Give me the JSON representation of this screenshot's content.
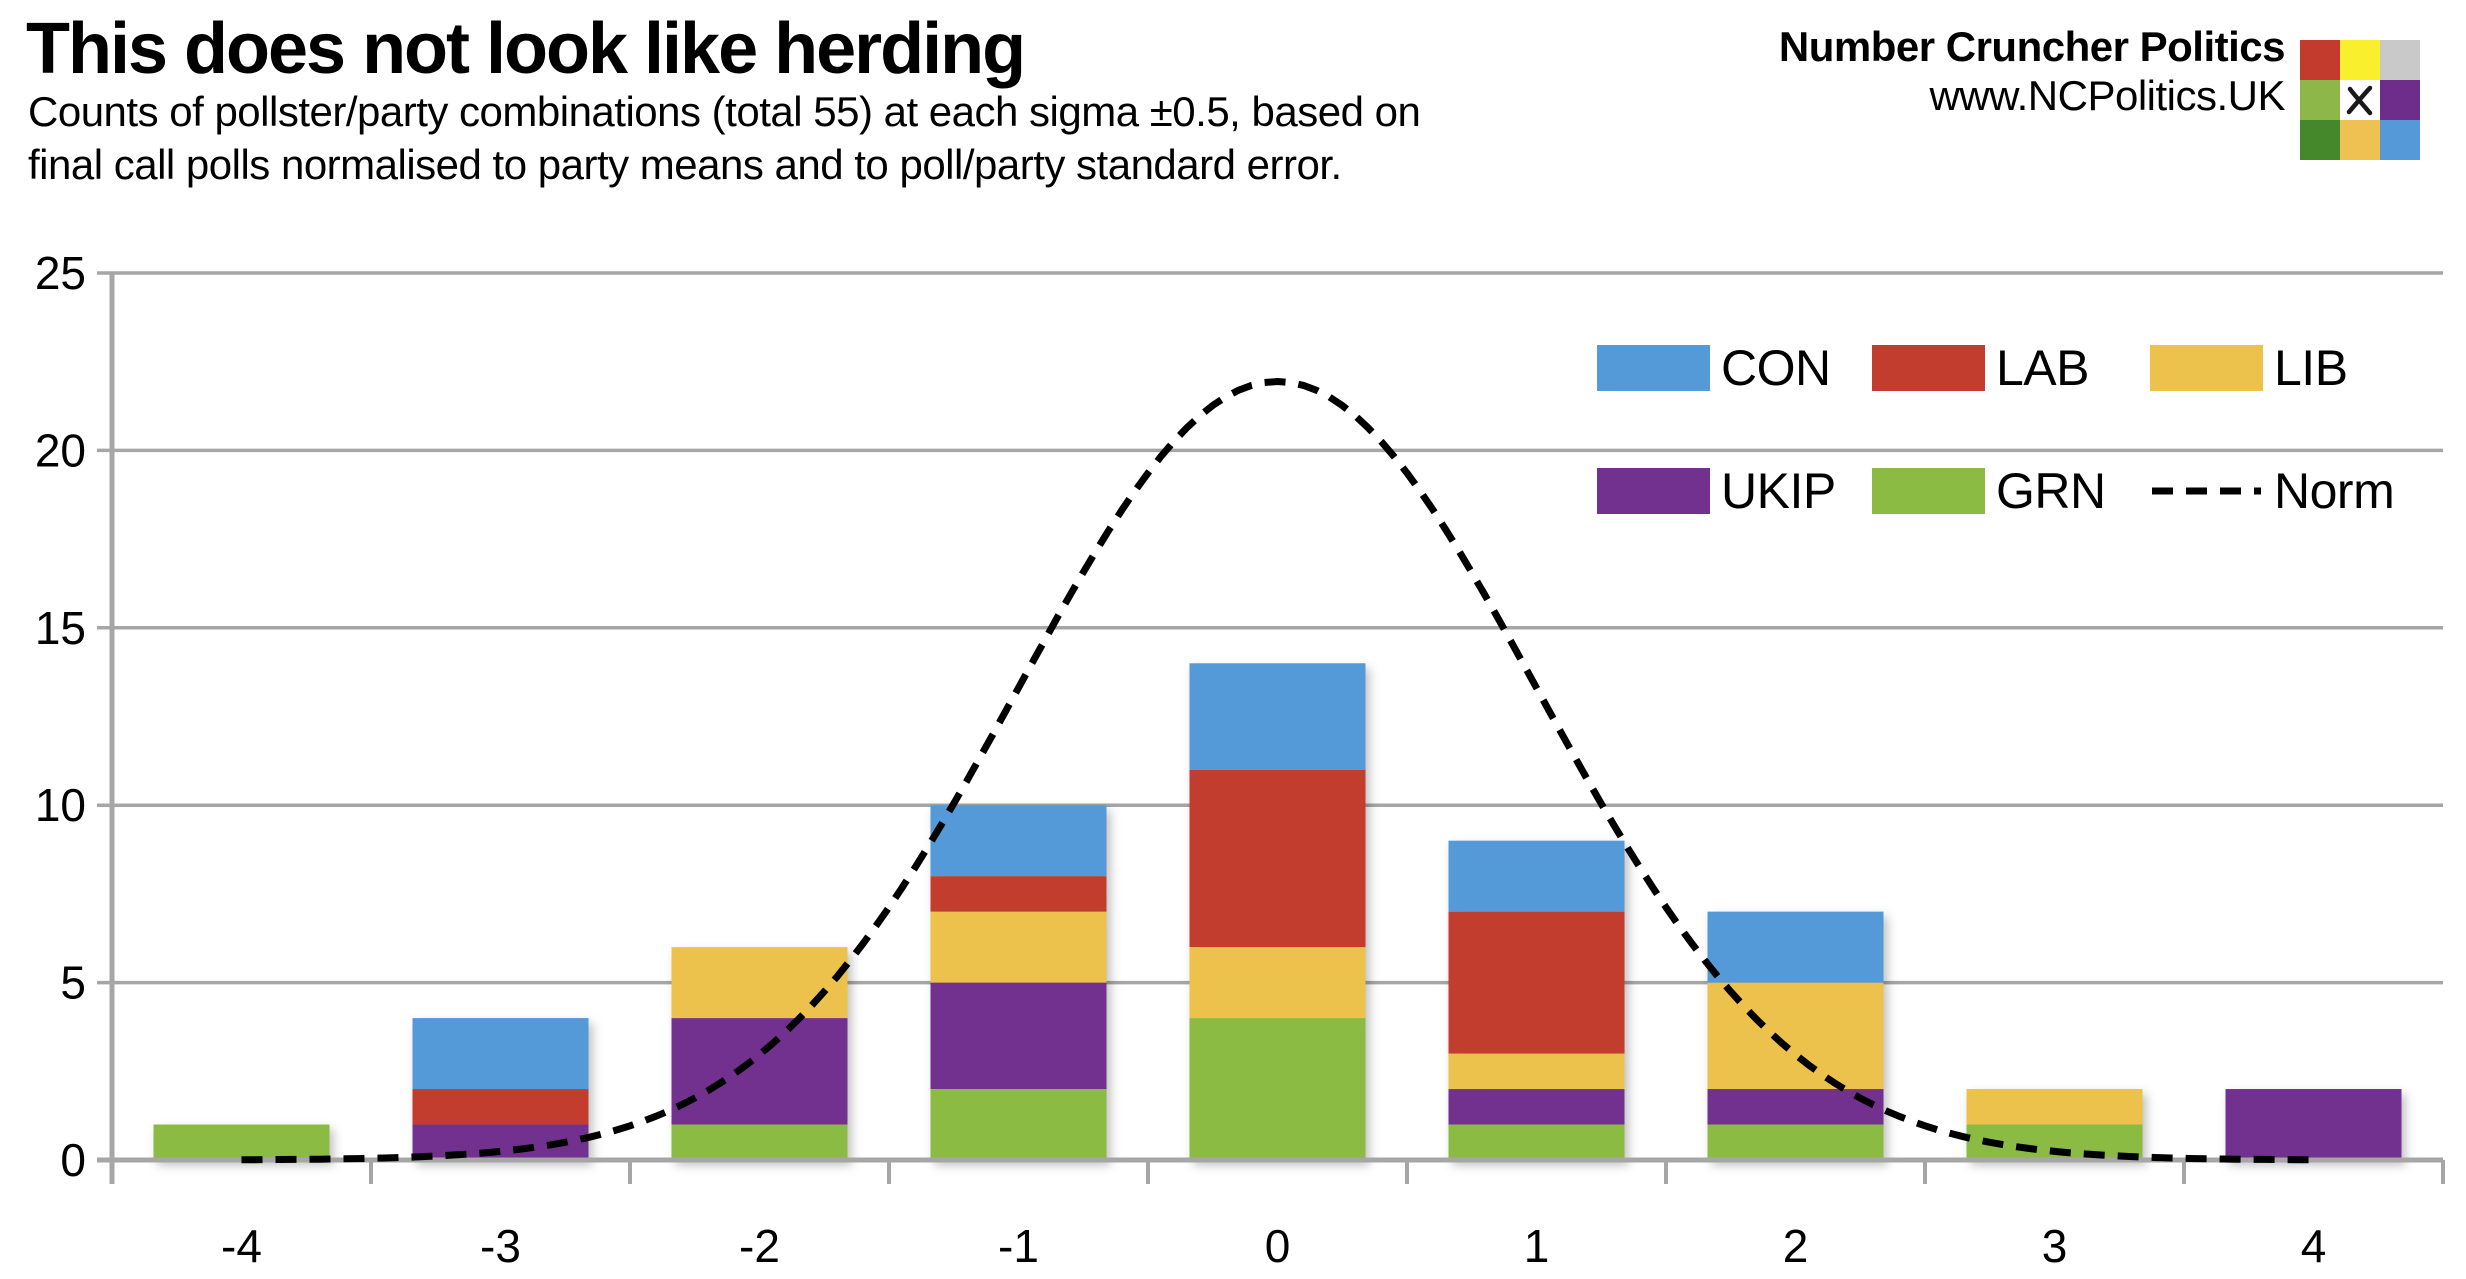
{
  "header": {
    "title": "This does not look like herding",
    "subtitle_line1": "Counts of pollster/party combinations (total 55) at each sigma ±0.5, based on",
    "subtitle_line2": "final call polls normalised to party means and to poll/party standard error.",
    "brand_name": "Number Cruncher Politics",
    "brand_url": "www.NCPolitics.UK"
  },
  "logo": {
    "description": "3x3 colour grid with ballot X in centre",
    "grid_colors": [
      [
        "#c23b2c",
        "#f9ef2d",
        "#c9c9c9"
      ],
      [
        "#8eb74a",
        "#ffffff",
        "#6e2c8b"
      ],
      [
        "#45882b",
        "#eec152",
        "#5599d8"
      ]
    ],
    "x_mark_color": "#1a1a1a"
  },
  "chart_data": {
    "type": "bar",
    "subtype": "stacked-columns-with-normal-curve-overlay",
    "title": "This does not look like herding",
    "categories": [
      -4,
      -3,
      -2,
      -1,
      0,
      1,
      2,
      3,
      4
    ],
    "series": [
      {
        "name": "CON",
        "color": "#5499d8",
        "values": [
          0,
          2,
          0,
          2,
          3,
          2,
          2,
          0,
          0
        ]
      },
      {
        "name": "LAB",
        "color": "#c33d2e",
        "values": [
          0,
          1,
          0,
          1,
          5,
          4,
          0,
          0,
          0
        ]
      },
      {
        "name": "LIB",
        "color": "#edc24c",
        "values": [
          0,
          0,
          2,
          2,
          2,
          1,
          3,
          1,
          0
        ]
      },
      {
        "name": "UKIP",
        "color": "#72308f",
        "values": [
          0,
          1,
          3,
          3,
          0,
          1,
          1,
          0,
          2
        ]
      },
      {
        "name": "GRN",
        "color": "#8cbb43",
        "values": [
          1,
          0,
          1,
          2,
          4,
          1,
          1,
          1,
          0
        ]
      }
    ],
    "stack_order_bottom_to_top": [
      "GRN",
      "UKIP",
      "LIB",
      "LAB",
      "CON"
    ],
    "totals_by_category": [
      1,
      4,
      6,
      10,
      14,
      9,
      7,
      2,
      2
    ],
    "total": 55,
    "norm_curve": {
      "label": "Norm",
      "distribution": "normal",
      "mean": 0,
      "sd": 1,
      "scale": 55,
      "peak_value": 22,
      "color": "#000000",
      "style": "dashed"
    },
    "legend": [
      {
        "label": "CON",
        "color": "#5499d8",
        "type": "swatch"
      },
      {
        "label": "LAB",
        "color": "#c33d2e",
        "type": "swatch"
      },
      {
        "label": "LIB",
        "color": "#edc24c",
        "type": "swatch"
      },
      {
        "label": "UKIP",
        "color": "#72308f",
        "type": "swatch"
      },
      {
        "label": "GRN",
        "color": "#8cbb43",
        "type": "swatch"
      },
      {
        "label": "Norm",
        "color": "#000000",
        "type": "dashed-line"
      }
    ],
    "yaxis": {
      "min": 0,
      "max": 25,
      "tick_step": 5,
      "tick_labels": [
        "0",
        "5",
        "10",
        "15",
        "20",
        "25"
      ]
    },
    "xaxis": {
      "tick_labels": [
        "-4",
        "-3",
        "-2",
        "-1",
        "0",
        "1",
        "2",
        "3",
        "4"
      ]
    },
    "grid": {
      "horizontal": true,
      "color": "#a6a6a6"
    },
    "axis_color": "#a6a6a6",
    "text_color": "#000000"
  }
}
